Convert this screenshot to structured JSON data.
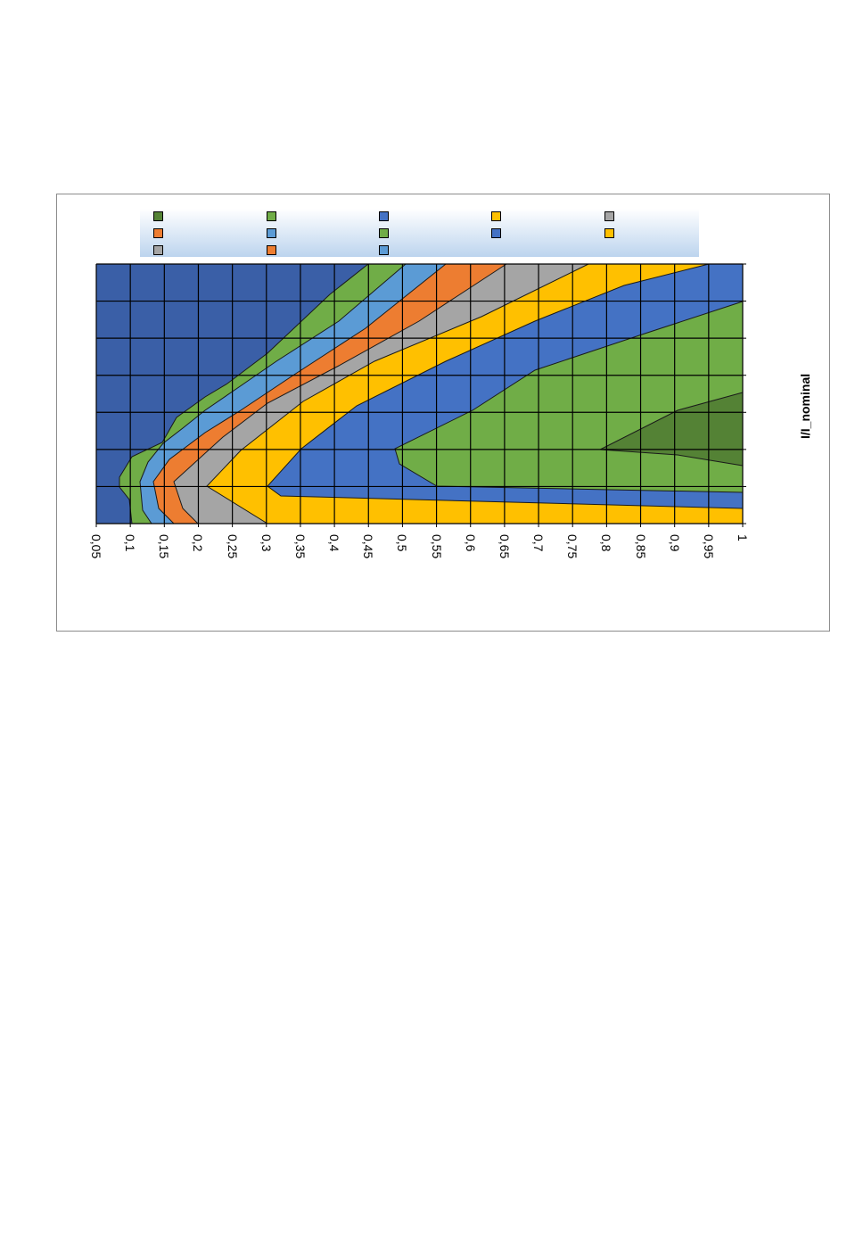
{
  "chart_data": {
    "type": "heatmap",
    "orientation": "rotated-90-ccw",
    "x": [
      "0,05",
      "0,1",
      "0,15",
      "0,2",
      "0,25",
      "0,3",
      "0,35",
      "0,4",
      "0,45",
      "0,5",
      "0,55",
      "0,6",
      "0,65",
      "0,7",
      "0,75",
      "0,8",
      "0,85",
      "0,9",
      "0,95",
      "1"
    ],
    "ylabel": "I/I_nominal",
    "legend_placement": "top",
    "legend_entries": 13,
    "grid": true,
    "colors": {
      "band_background": "#3a5fa7",
      "band_green": "#70ad47",
      "band_light_blue": "#5b9bd5",
      "band_orange": "#ed7d31",
      "band_gray": "#a5a5a5",
      "band_yellow": "#ffc000",
      "band_blue": "#4472c4",
      "band_dark_green": "#548235",
      "legend_bg_top": "#ffffff",
      "legend_bg_bottom": "#bcd4ee",
      "frame": "#8c8c8c"
    },
    "legend_swatch_colors": [
      "#548235",
      "#70ad47",
      "#4472c4",
      "#ffc000",
      "#a5a5a5",
      "#ed7d31",
      "#5b9bd5",
      "#70ad47",
      "#4472c4",
      "#ffc000",
      "#a5a5a5",
      "#ed7d31",
      "#5b9bd5"
    ]
  }
}
